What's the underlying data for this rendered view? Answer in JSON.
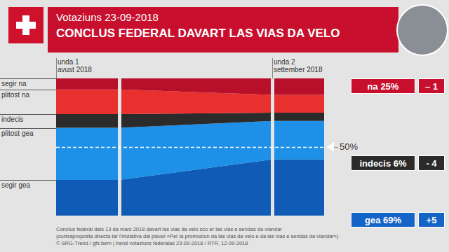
{
  "chart_data": {
    "type": "area",
    "stacked": true,
    "subtitle": "Votaziuns 23-09-2018",
    "title": "CONCLUS FEDERAL DAVART LAS VIAS DA VELO",
    "categories": [
      "unda 1\navust 2018",
      "unda 2\nsettember 2018"
    ],
    "series": [
      {
        "name": "segir gea",
        "color": "#0f5bb5",
        "values": [
          26,
          41
        ]
      },
      {
        "name": "plitost gea",
        "color": "#1e90e8",
        "values": [
          38,
          28
        ]
      },
      {
        "name": "indecis",
        "color": "#2b2b2b",
        "values": [
          10,
          6
        ]
      },
      {
        "name": "plitost na",
        "color": "#e8302e",
        "values": [
          18,
          13
        ]
      },
      {
        "name": "segir na",
        "color": "#b8102a",
        "values": [
          8,
          12
        ]
      }
    ],
    "ylim": [
      0,
      100
    ],
    "tick_labels": false,
    "reference_line": {
      "value": 50,
      "label": "50%"
    },
    "totals": [
      {
        "label": "na 25%",
        "change": "– 1",
        "color": "#c8102e"
      },
      {
        "label": "indecis 6%",
        "change": "- 4",
        "color": "#2b2b2b"
      },
      {
        "label": "gea 69%",
        "change": "+5",
        "color": "#1565c8"
      }
    ],
    "footnote": [
      "Conclus federal dals 13 da mars 2018 davart las vias da velo sco er las vias e sendas da viandar",
      "(cuntraproposta directa tar l'iniziativa dal pievel «Per la promoziun da las vias da velo e da las vias e sendas da viandar»)",
      "© SRG-Trend / gfs.bern | trend votaziuns federalas 23-09-2018 / RTR, 12-09-2018"
    ]
  }
}
